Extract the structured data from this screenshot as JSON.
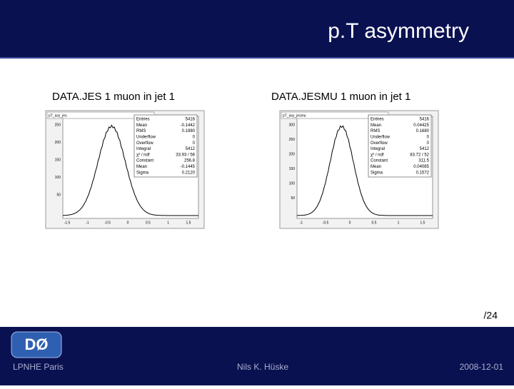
{
  "header": {
    "title": "p.T asymmetry"
  },
  "panels": [
    {
      "label": "DATA.JES 1 muon in jet 1",
      "plot_title": "pT_asy_jes",
      "stats": [
        [
          "Entries",
          "5416"
        ],
        [
          "Mean",
          "-0.1442"
        ],
        [
          "RMS",
          "0.1980"
        ],
        [
          "Underflow",
          "0"
        ],
        [
          "Overflow",
          "0"
        ],
        [
          "Integral",
          "5412"
        ],
        [
          "χ² / ndf",
          "33.93 / 56"
        ],
        [
          "Constant",
          "256.8"
        ],
        [
          "Mean",
          "-0.1445"
        ],
        [
          "Sigma",
          "0.2120"
        ]
      ],
      "yticks": [
        "250",
        "200",
        "150",
        "100",
        "50"
      ],
      "xticks": [
        "-1.5",
        "-1",
        "-0.5",
        "0",
        "0.5",
        "1",
        "1.5"
      ]
    },
    {
      "label": "DATA.JESMU 1 muon in jet 1",
      "plot_title": "pT_asy_jesmu",
      "stats": [
        [
          "Entries",
          "5416"
        ],
        [
          "Mean",
          "0.04425"
        ],
        [
          "RMS",
          "0.1680"
        ],
        [
          "Underflow",
          "0"
        ],
        [
          "Overflow",
          "0"
        ],
        [
          "Integral",
          "5412"
        ],
        [
          "χ² / ndf",
          "83.72 / 52"
        ],
        [
          "Constant",
          "311.5"
        ],
        [
          "Mean",
          "0.04085"
        ],
        [
          "Sigma",
          "0.1572"
        ]
      ],
      "yticks": [
        "300",
        "250",
        "200",
        "150",
        "100",
        "50"
      ],
      "xticks": [
        "-1",
        "-0.5",
        "0",
        "0.5",
        "1",
        "1.5"
      ]
    }
  ],
  "page": "/24",
  "footer": {
    "logo": "DØ",
    "left": "LPNHE Paris",
    "center": "Nils K. Hüske",
    "right": "2008-12-01"
  }
}
